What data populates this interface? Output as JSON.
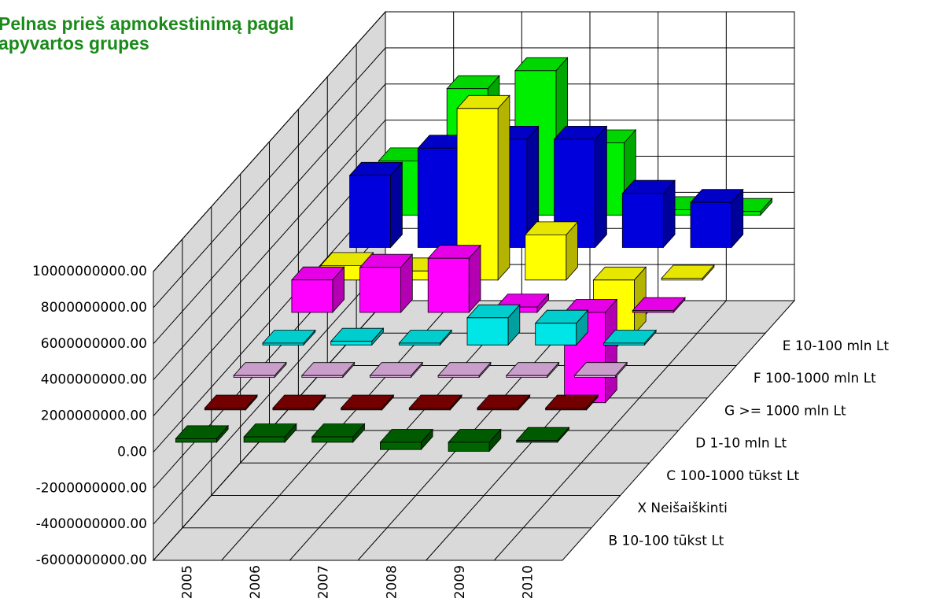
{
  "chart_data": {
    "type": "bar3d",
    "title": "Pelnas prieš apmokestinimą pagal apyvartos grupes",
    "categories": [
      "2005",
      "2006",
      "2007",
      "2008",
      "2009",
      "2010"
    ],
    "series": [
      {
        "name": "B  10-100 tūkst Lt",
        "color": "#006400",
        "values": [
          200000000,
          300000000,
          300000000,
          -400000000,
          -500000000,
          100000000
        ]
      },
      {
        "name": "X  Neišaiškinti",
        "color": "#800000",
        "values": [
          100000000,
          100000000,
          100000000,
          100000000,
          100000000,
          100000000
        ]
      },
      {
        "name": "C  100-1000 tūkst Lt",
        "color": "#e0b0e0",
        "values": [
          100000000,
          100000000,
          100000000,
          100000000,
          100000000,
          100000000
        ]
      },
      {
        "name": "D  1-10 mln Lt",
        "color": "#00e5e5",
        "values": [
          100000000,
          200000000,
          100000000,
          1500000000,
          1200000000,
          100000000
        ]
      },
      {
        "name": "G  >= 1000 mln Lt",
        "color": "#ff00ff",
        "values": [
          1800000000,
          2500000000,
          3000000000,
          300000000,
          -5000000000,
          100000000
        ]
      },
      {
        "name": "F  100-1000 mln Lt",
        "color": "#ffff00",
        "values": [
          800000000,
          500000000,
          9500000000,
          2500000000,
          -3000000000,
          100000000
        ]
      },
      {
        "name": "E  10-100 mln Lt",
        "color": "#0000dd",
        "values": [
          4000000000,
          5500000000,
          6000000000,
          6000000000,
          3000000000,
          2500000000
        ]
      },
      {
        "color": "#00ee00",
        "values": [
          3000000000,
          7000000000,
          8000000000,
          4000000000,
          300000000,
          200000000
        ]
      }
    ],
    "ylim": [
      -6000000000,
      10000000000
    ],
    "yticks": [
      {
        "value": -6000000000,
        "label": "-6000000000.00"
      },
      {
        "value": -4000000000,
        "label": "-4000000000.00"
      },
      {
        "value": -2000000000,
        "label": "-2000000000.00"
      },
      {
        "value": 0,
        "label": "0.00"
      },
      {
        "value": 2000000000,
        "label": "2000000000.00"
      },
      {
        "value": 4000000000,
        "label": "4000000000.00"
      },
      {
        "value": 6000000000,
        "label": "6000000000.00"
      },
      {
        "value": 8000000000,
        "label": "8000000000.00"
      },
      {
        "value": 10000000000,
        "label": "10000000000.00"
      }
    ],
    "grid": true
  }
}
